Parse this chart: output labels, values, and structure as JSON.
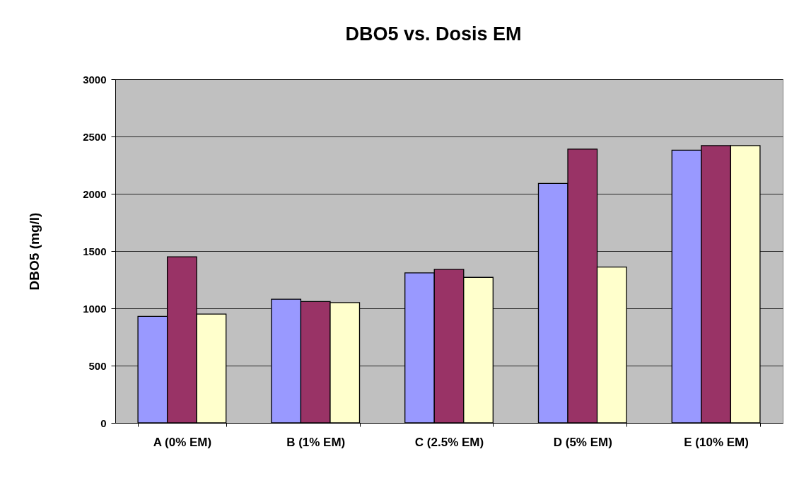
{
  "chart_data": {
    "type": "bar",
    "title": "DBO5 vs. Dosis EM",
    "ylabel": "DBO5 (mg/l)",
    "categories": [
      "A (0% EM)",
      "B (1% EM)",
      "C (2.5% EM)",
      "D (5% EM)",
      "E (10% EM)"
    ],
    "series": [
      {
        "color": "#9999ff",
        "values": [
          930,
          1080,
          1310,
          2090,
          2380
        ]
      },
      {
        "color": "#993366",
        "values": [
          1450,
          1060,
          1340,
          2390,
          2420
        ]
      },
      {
        "color": "#ffffcc",
        "values": [
          950,
          1050,
          1270,
          1360,
          2420
        ]
      }
    ],
    "ylim": [
      0,
      3000
    ],
    "yticks": [
      0,
      500,
      1000,
      1500,
      2000,
      2500,
      3000
    ],
    "grid": "y"
  }
}
